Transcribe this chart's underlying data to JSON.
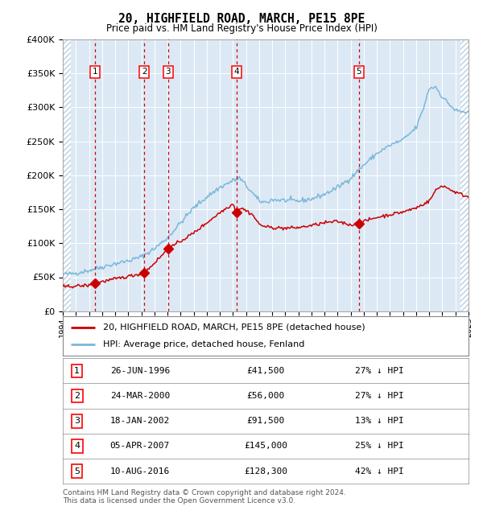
{
  "title": "20, HIGHFIELD ROAD, MARCH, PE15 8PE",
  "subtitle": "Price paid vs. HM Land Registry's House Price Index (HPI)",
  "background_color": "#dce9f5",
  "ylim": [
    0,
    400000
  ],
  "yticks": [
    0,
    50000,
    100000,
    150000,
    200000,
    250000,
    300000,
    350000,
    400000
  ],
  "ytick_labels": [
    "£0",
    "£50K",
    "£100K",
    "£150K",
    "£200K",
    "£250K",
    "£300K",
    "£350K",
    "£400K"
  ],
  "legend_house": "20, HIGHFIELD ROAD, MARCH, PE15 8PE (detached house)",
  "legend_hpi": "HPI: Average price, detached house, Fenland",
  "house_color": "#cc0000",
  "hpi_color": "#7ab8d9",
  "footer": "Contains HM Land Registry data © Crown copyright and database right 2024.\nThis data is licensed under the Open Government Licence v3.0.",
  "sales": [
    {
      "label": "1",
      "date_dec": 1996.48,
      "price": 41500
    },
    {
      "label": "2",
      "date_dec": 2000.23,
      "price": 56000
    },
    {
      "label": "3",
      "date_dec": 2002.05,
      "price": 91500
    },
    {
      "label": "4",
      "date_dec": 2007.27,
      "price": 145000
    },
    {
      "label": "5",
      "date_dec": 2016.61,
      "price": 128300
    }
  ],
  "table_rows": [
    {
      "num": "1",
      "date": "26-JUN-1996",
      "price": "£41,500",
      "note": "27% ↓ HPI"
    },
    {
      "num": "2",
      "date": "24-MAR-2000",
      "price": "£56,000",
      "note": "27% ↓ HPI"
    },
    {
      "num": "3",
      "date": "18-JAN-2002",
      "price": "£91,500",
      "note": "13% ↓ HPI"
    },
    {
      "num": "4",
      "date": "05-APR-2007",
      "price": "£145,000",
      "note": "25% ↓ HPI"
    },
    {
      "num": "5",
      "date": "10-AUG-2016",
      "price": "£128,300",
      "note": "42% ↓ HPI"
    }
  ],
  "hpi_anchors_x": [
    1994,
    1995,
    1996,
    1997,
    1998,
    1999,
    2000,
    2001,
    2002,
    2003,
    2004,
    2005,
    2006,
    2007,
    2007.5,
    2008,
    2009,
    2009.5,
    2010,
    2011,
    2012,
    2013,
    2014,
    2015,
    2016,
    2017,
    2018,
    2019,
    2020,
    2021,
    2021.5,
    2022,
    2022.5,
    2023,
    2024,
    2025
  ],
  "hpi_anchors_y": [
    54000,
    56000,
    60000,
    65000,
    70000,
    74000,
    80000,
    92000,
    108000,
    130000,
    152000,
    168000,
    182000,
    192000,
    196000,
    185000,
    162000,
    160000,
    164000,
    163000,
    162000,
    165000,
    172000,
    182000,
    196000,
    215000,
    232000,
    244000,
    252000,
    270000,
    295000,
    328000,
    330000,
    315000,
    295000,
    292000
  ],
  "house_anchors_x": [
    1994,
    1996.0,
    1996.48,
    2000.23,
    2002.05,
    2004,
    2005,
    2006,
    2007.0,
    2007.27,
    2007.6,
    2008,
    2008.5,
    2009,
    2009.5,
    2010,
    2011,
    2012,
    2013,
    2014,
    2015,
    2016.0,
    2016.61,
    2017,
    2018,
    2019,
    2020,
    2021,
    2022,
    2022.5,
    2023,
    2024,
    2025
  ],
  "house_anchors_y": [
    36000,
    38000,
    41500,
    56000,
    91500,
    115000,
    130000,
    145000,
    158000,
    145000,
    152000,
    148000,
    142000,
    128000,
    124000,
    123000,
    122000,
    123000,
    126000,
    130000,
    132000,
    127000,
    128300,
    132000,
    138000,
    142000,
    146000,
    152000,
    162000,
    178000,
    185000,
    175000,
    168000
  ]
}
